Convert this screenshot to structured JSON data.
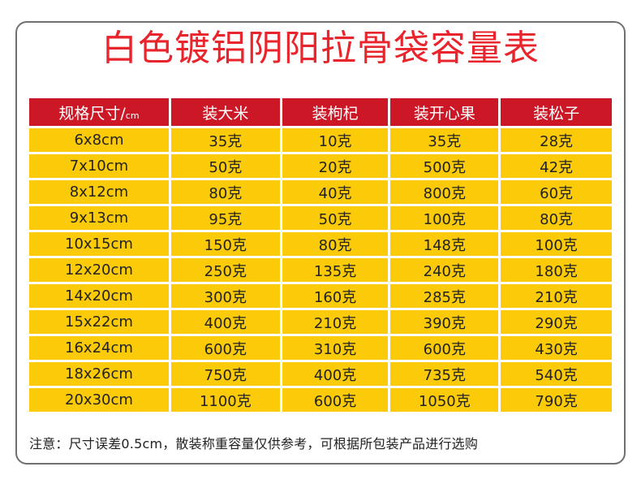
{
  "title": "白色镀铝阴阳拉骨袋容量表",
  "table": {
    "headers": [
      {
        "label": "规格尺寸/",
        "unit": "cm"
      },
      {
        "label": "装大米"
      },
      {
        "label": "装枸杞"
      },
      {
        "label": "装开心果"
      },
      {
        "label": "装松子"
      }
    ],
    "rows": [
      [
        "6x8cm",
        "35克",
        "10克",
        "35克",
        "28克"
      ],
      [
        "7x10cm",
        "50克",
        "20克",
        "500克",
        "42克"
      ],
      [
        "8x12cm",
        "80克",
        "40克",
        "800克",
        "60克"
      ],
      [
        "9x13cm",
        "95克",
        "50克",
        "100克",
        "80克"
      ],
      [
        "10x15cm",
        "150克",
        "80克",
        "148克",
        "100克"
      ],
      [
        "12x20cm",
        "250克",
        "135克",
        "240克",
        "180克"
      ],
      [
        "14x20cm",
        "300克",
        "160克",
        "285克",
        "210克"
      ],
      [
        "15x22cm",
        "400克",
        "210克",
        "390克",
        "290克"
      ],
      [
        "16x24cm",
        "600克",
        "310克",
        "600克",
        "430克"
      ],
      [
        "18x26cm",
        "750克",
        "400克",
        "735克",
        "540克"
      ],
      [
        "20x30cm",
        "1100克",
        "600克",
        "1050克",
        "790克"
      ]
    ]
  },
  "note": "注意：尺寸误差0.5cm，散装称重容量仅供参考，可根据所包装产品进行选购",
  "colors": {
    "title": "#e8242c",
    "header_bg": "#cc1826",
    "cell_bg": "#fbcb0a",
    "border": "#707070"
  }
}
